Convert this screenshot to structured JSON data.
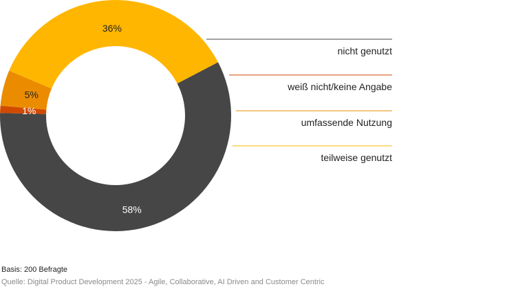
{
  "chart_data": {
    "type": "pie",
    "donut": true,
    "title": "",
    "slices": [
      {
        "name": "nicht genutzt",
        "value": 58,
        "label": "58%",
        "color": "#464646"
      },
      {
        "name": "weiß nicht/keine Angabe",
        "value": 1,
        "label": "1%",
        "color": "#d04a02"
      },
      {
        "name": "umfassende Nutzung",
        "value": 5,
        "label": "5%",
        "color": "#eb8c00"
      },
      {
        "name": "teilweise genutzt",
        "value": 36,
        "label": "36%",
        "color": "#ffb600"
      }
    ]
  },
  "footer": {
    "basis": "Basis: 200 Befragte",
    "source": "Quelle: Digital Product Development 2025 - Agile, Collaborative, AI Driven and Customer Centric"
  }
}
